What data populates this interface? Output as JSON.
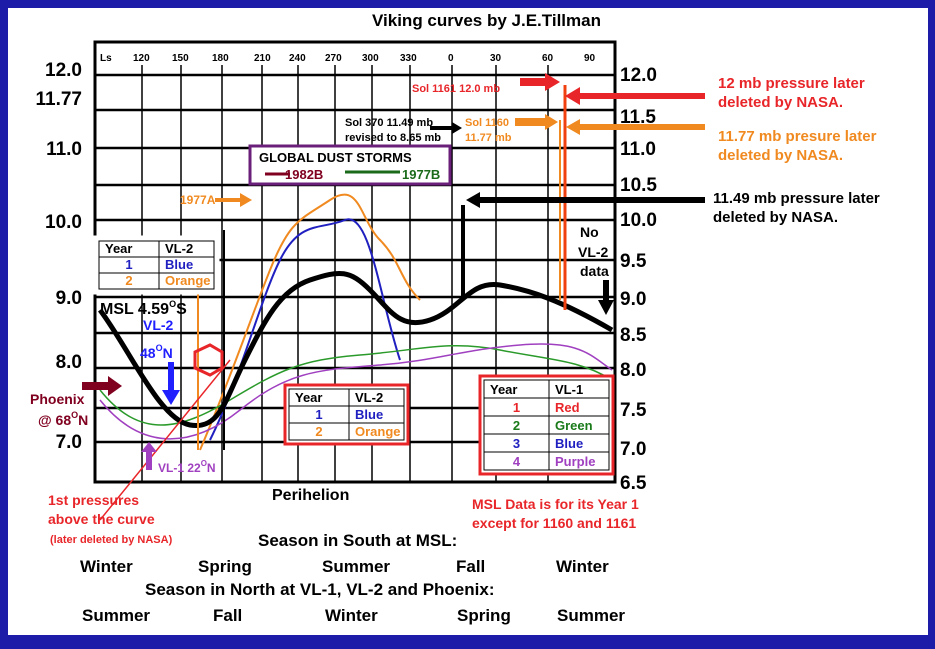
{
  "title": "Viking curves by J.E.Tillman",
  "ls_ticks": [
    "Ls",
    "120",
    "150",
    "180",
    "210",
    "240",
    "270",
    "300",
    "330",
    "0",
    "30",
    "60",
    "90"
  ],
  "left_axis": [
    "12.0",
    "11.77",
    "11.0",
    "10.0",
    "9.0",
    "8.0",
    "7.0"
  ],
  "right_axis": [
    "12.0",
    "11.5",
    "11.0",
    "10.5",
    "10.0",
    "9.5",
    "9.0",
    "8.5",
    "8.0",
    "7.5",
    "7.0",
    "6.5"
  ],
  "annotations": {
    "sol1161": "Sol 1161 12.0 mb",
    "sol370": [
      "Sol 370 11.49 mb",
      "revised to 8.65 mb"
    ],
    "sol1160": [
      "Sol 1160",
      "11.77 mb"
    ],
    "dust_title": "GLOBAL DUST STORMS",
    "dust_1982b": "1982B",
    "dust_1977b": "1977B",
    "dust_1977a": "1977A",
    "no_vl2": [
      "No",
      "VL-2",
      "data"
    ],
    "note_12": [
      "12 mb pressure later",
      "deleted by NASA."
    ],
    "note_1177": [
      "11.77 mb presure later",
      "deleted by NASA."
    ],
    "note_1149": [
      "11.49 mb pressure later",
      "deleted by NASA."
    ],
    "msl": [
      "MSL 4.59",
      "O",
      "S"
    ],
    "vl2": [
      "VL-2",
      "48",
      "O",
      "N"
    ],
    "phoenix": [
      "Phoenix",
      "@ 68",
      "O",
      "N"
    ],
    "vl1": [
      "VL-1 22",
      "O",
      "N"
    ],
    "first_pressures": [
      "1st pressures",
      "above the curve",
      "(later deleted by NASA)"
    ],
    "perihelion": "Perihelion",
    "msl_data": [
      "MSL Data is for its Year 1",
      "except for 1160 and 1161"
    ]
  },
  "legend_small": {
    "header": [
      "Year",
      "VL-2"
    ],
    "rows": [
      [
        "1",
        "Blue"
      ],
      [
        "2",
        "Orange"
      ]
    ]
  },
  "legend_vl2": {
    "header": [
      "Year",
      "VL-2"
    ],
    "rows": [
      [
        "1",
        "Blue"
      ],
      [
        "2",
        "Orange"
      ]
    ]
  },
  "legend_vl1": {
    "header": [
      "Year",
      "VL-1"
    ],
    "rows": [
      [
        "1",
        "Red"
      ],
      [
        "2",
        "Green"
      ],
      [
        "3",
        "Blue"
      ],
      [
        "4",
        "Purple"
      ]
    ]
  },
  "seasons": {
    "south_heading": "Season in South at MSL:",
    "south": [
      "Winter",
      "Spring",
      "Summer",
      "Fall",
      "Winter"
    ],
    "north_heading": "Season in North at VL-1, VL-2 and Phoenix:",
    "north": [
      "Summer",
      "Fall",
      "Winter",
      "Spring",
      "Summer"
    ]
  }
}
